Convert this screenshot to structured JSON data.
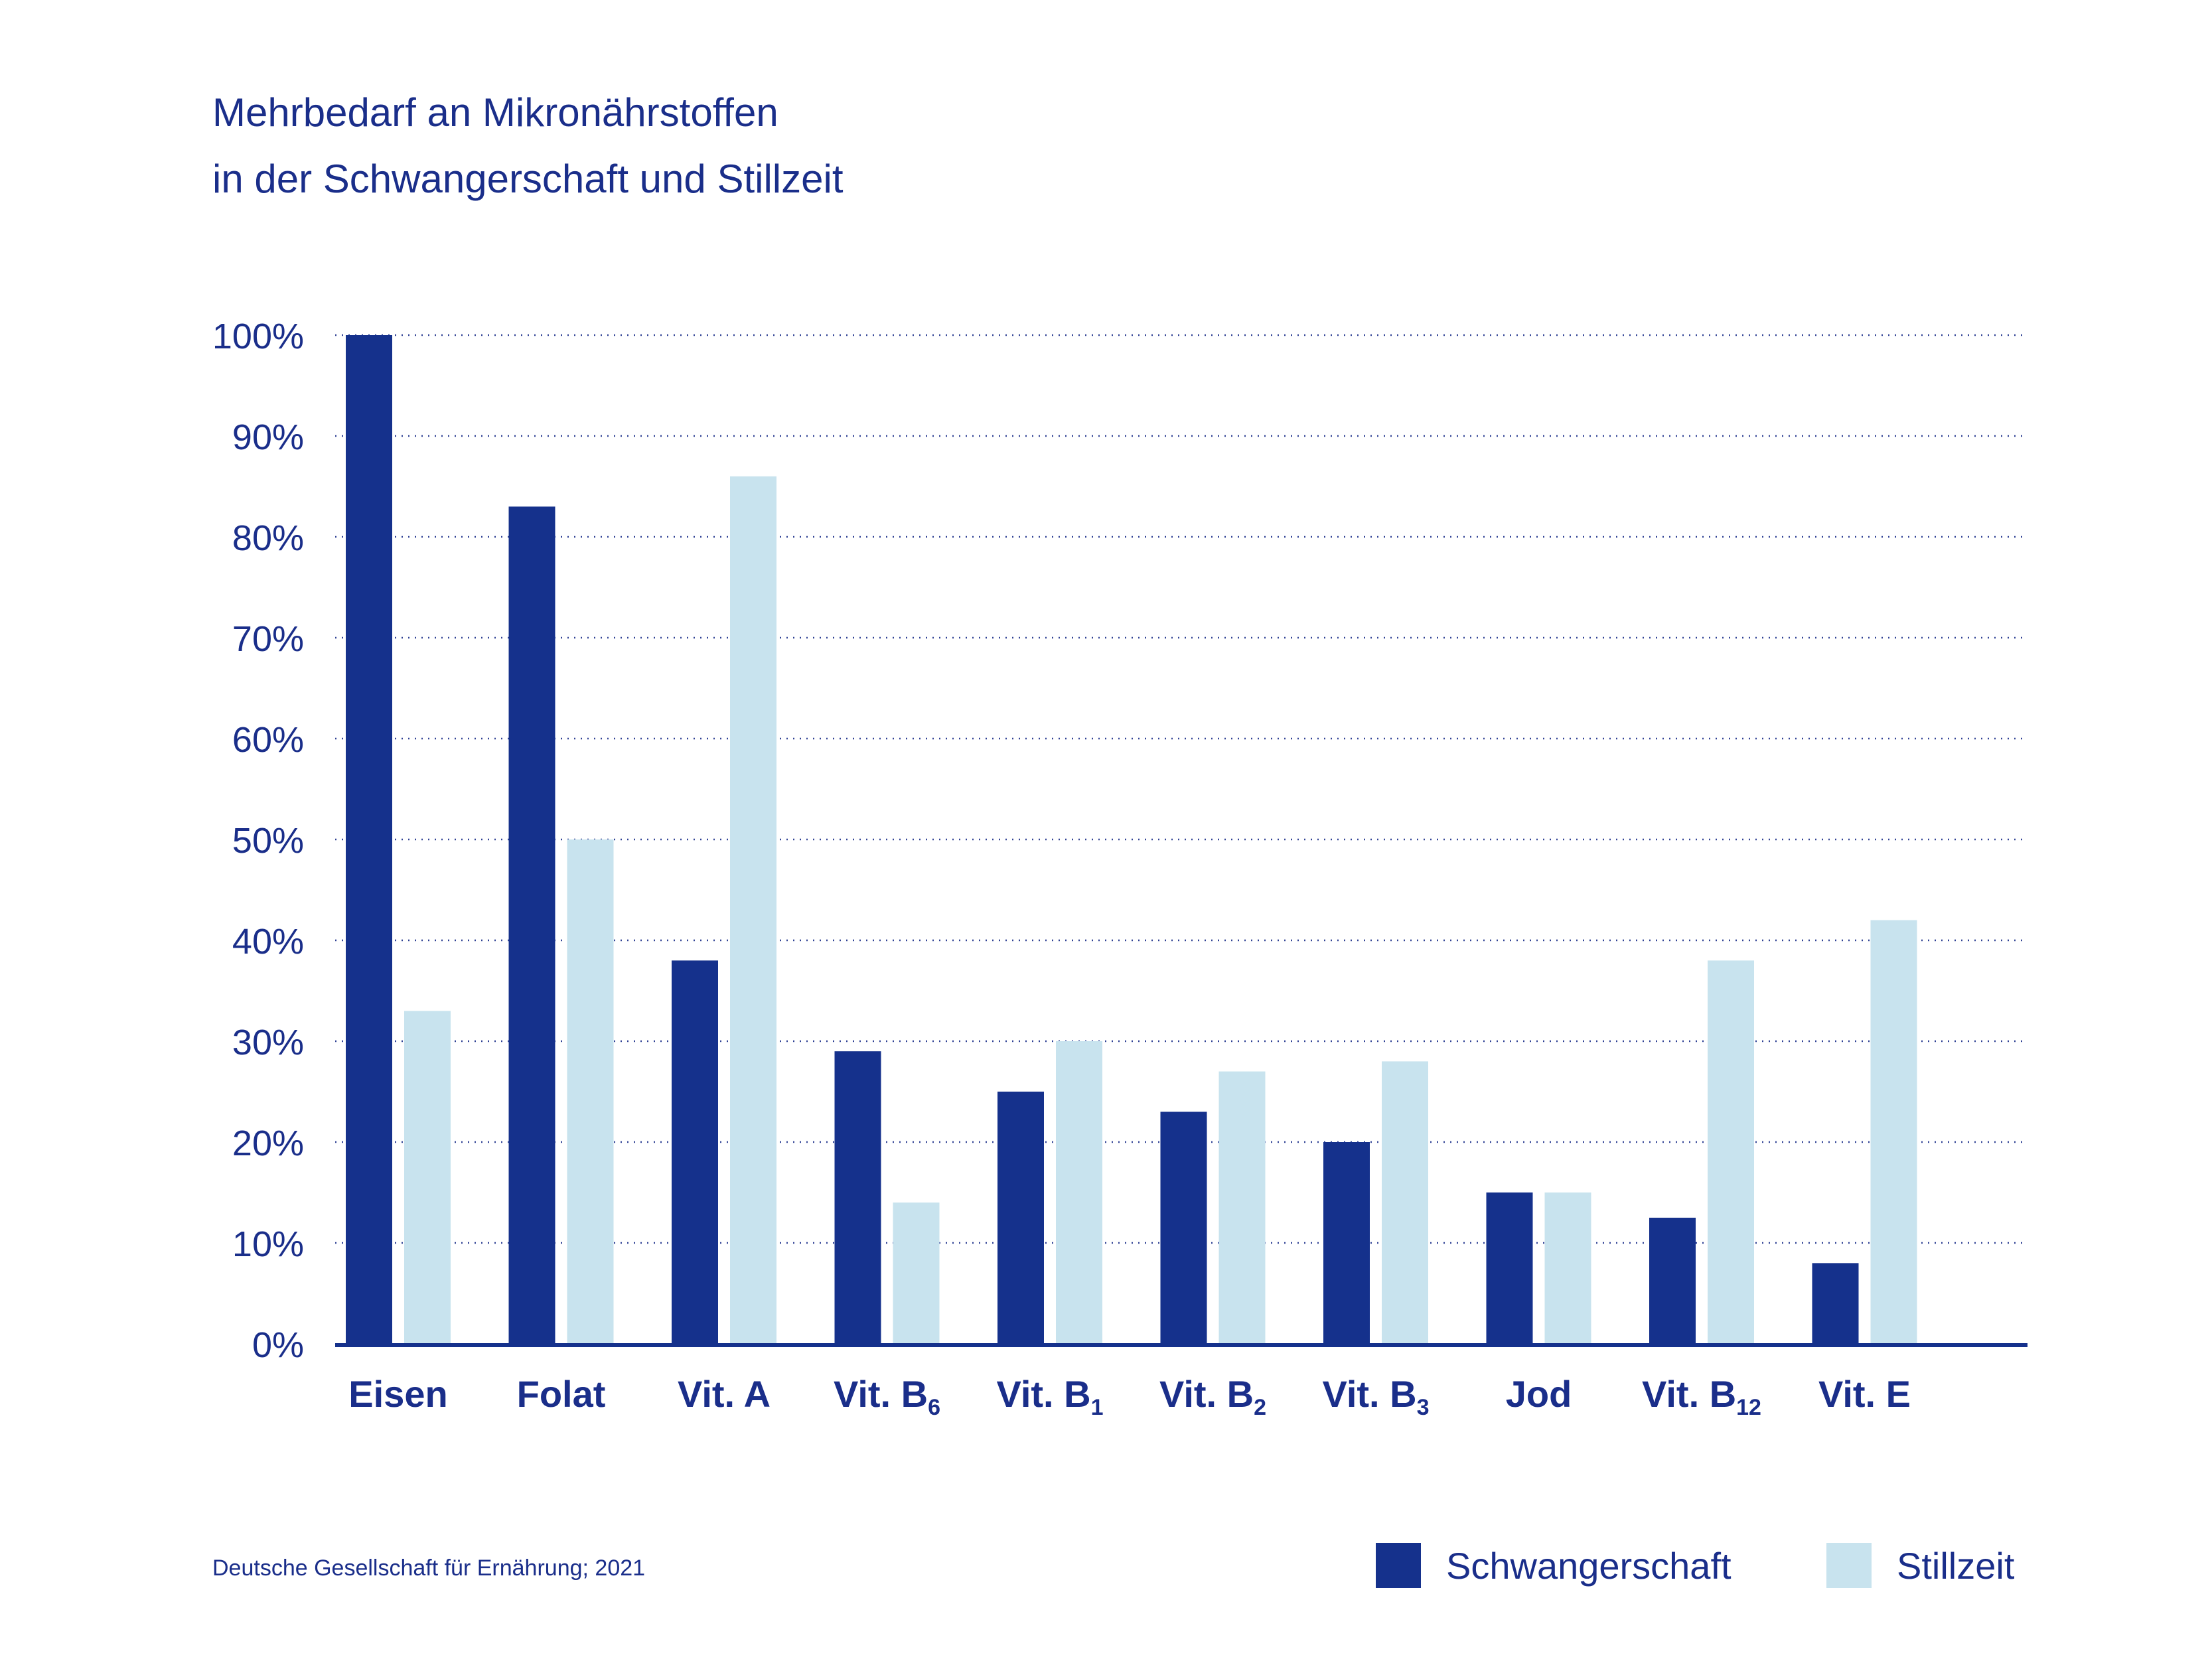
{
  "title_lines": [
    "Mehrbedarf an Mikronährstoffen",
    "in der Schwangerschaft und Stillzeit"
  ],
  "source": "Deutsche Gesellschaft für Ernährung; 2021",
  "colors": {
    "pregnancy": "#15318c",
    "lactation": "#c8e3ee",
    "text": "#1a2e8a",
    "grid": "#1a2e8a"
  },
  "legend": {
    "pregnancy": "Schwangerschaft",
    "lactation": "Stillzeit"
  },
  "chart_data": {
    "type": "bar",
    "title": "Mehrbedarf an Mikronährstoffen in der Schwangerschaft und Stillzeit",
    "xlabel": "",
    "ylabel": "",
    "ylim": [
      0,
      100
    ],
    "y_ticks": [
      0,
      10,
      20,
      30,
      40,
      50,
      60,
      70,
      80,
      90,
      100
    ],
    "y_tick_labels": [
      "0%",
      "10%",
      "20%",
      "30%",
      "40%",
      "50%",
      "60%",
      "70%",
      "80%",
      "90%",
      "100%"
    ],
    "grid": true,
    "legend_position": "bottom-right",
    "categories": [
      {
        "base": "Eisen",
        "sub": ""
      },
      {
        "base": "Folat",
        "sub": ""
      },
      {
        "base": "Vit. A",
        "sub": ""
      },
      {
        "base": "Vit. B",
        "sub": "6"
      },
      {
        "base": "Vit. B",
        "sub": "1"
      },
      {
        "base": "Vit. B",
        "sub": "2"
      },
      {
        "base": "Vit. B",
        "sub": "3"
      },
      {
        "base": "Jod",
        "sub": ""
      },
      {
        "base": "Vit. B",
        "sub": "12"
      },
      {
        "base": "Vit. E",
        "sub": ""
      }
    ],
    "series": [
      {
        "name": "Schwangerschaft",
        "key": "pregnancy",
        "values": [
          100,
          83,
          38,
          29,
          25,
          23,
          20,
          15,
          12.5,
          8
        ]
      },
      {
        "name": "Stillzeit",
        "key": "lactation",
        "values": [
          33,
          50,
          86,
          14,
          30,
          27,
          28,
          15,
          38,
          42
        ]
      }
    ]
  }
}
